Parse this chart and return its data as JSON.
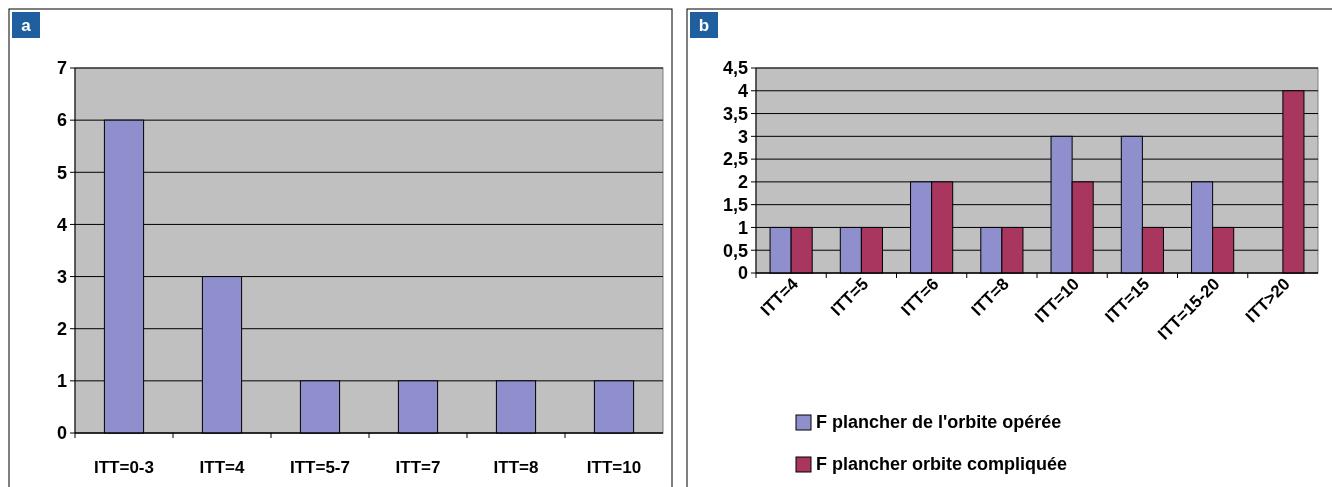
{
  "chart_data": [
    {
      "type": "bar",
      "title": "a",
      "categories": [
        "ITT=0-3",
        "ITT=4",
        "ITT=5-7",
        "ITT=7",
        "ITT=8",
        "ITT=10"
      ],
      "values": [
        6,
        3,
        1,
        1,
        1,
        1
      ],
      "color": "#8e8fcc",
      "ylim": [
        0,
        7
      ],
      "yticks": [
        0,
        1,
        2,
        3,
        4,
        5,
        6,
        7
      ],
      "grid": "y"
    },
    {
      "type": "bar",
      "title": "b",
      "categories": [
        "ITT=4",
        "ITT=5",
        "ITT=6",
        "ITT=8",
        "ITT=10",
        "ITT=15",
        "ITT=15-20",
        "ITT>20"
      ],
      "series": [
        {
          "name": "F plancher de l'orbite opérée",
          "color": "#8e8fcc",
          "values": [
            1,
            1,
            2,
            1,
            3,
            3,
            2,
            null
          ]
        },
        {
          "name": "F plancher orbite compliquée",
          "color": "#a8365f",
          "values": [
            1,
            1,
            2,
            1,
            2,
            1,
            1,
            4
          ]
        }
      ],
      "ylim": [
        0,
        4.5
      ],
      "yticks": [
        0,
        {
          "value": 0.5,
          "label": "0,5"
        },
        1,
        {
          "value": 1.5,
          "label": "1,5"
        },
        2,
        {
          "value": 2.5,
          "label": "2,5"
        },
        3,
        {
          "value": 3.5,
          "label": "3,5"
        },
        4,
        {
          "value": 4.5,
          "label": "4,5"
        }
      ],
      "grid": "y",
      "legend": "bottom"
    }
  ]
}
